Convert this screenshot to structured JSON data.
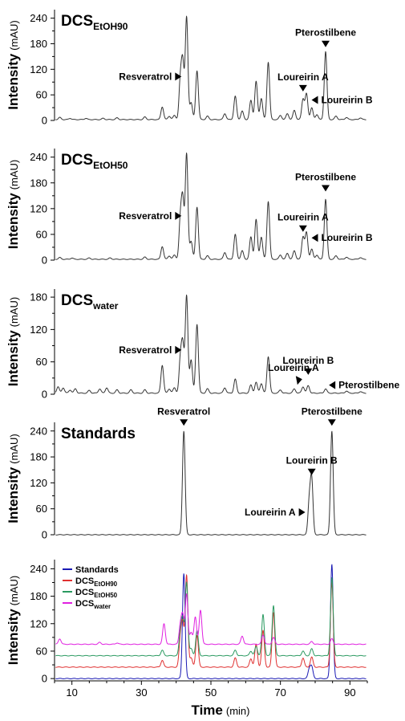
{
  "chart_data": [
    {
      "type": "line",
      "panel_label": "DCS",
      "panel_label_sub": "EtOH90",
      "ylabel": "Intensity",
      "ylabel_unit": "(mAU)",
      "ylim": [
        0,
        260
      ],
      "yticks": [
        0,
        60,
        120,
        180,
        240
      ],
      "xlim": [
        5,
        95
      ],
      "series": [
        {
          "color": "#333333",
          "baseline": 2,
          "peaks": [
            {
              "x": 6.5,
              "h": 5
            },
            {
              "x": 9.5,
              "h": 3
            },
            {
              "x": 14,
              "h": 3
            },
            {
              "x": 19,
              "h": 3
            },
            {
              "x": 23,
              "h": 4
            },
            {
              "x": 31,
              "h": 6
            },
            {
              "x": 36,
              "h": 30
            },
            {
              "x": 38,
              "h": 8
            },
            {
              "x": 39.5,
              "h": 10
            },
            {
              "x": 41.2,
              "h": 90
            },
            {
              "x": 41.9,
              "h": 130
            },
            {
              "x": 43,
              "h": 240
            },
            {
              "x": 44.3,
              "h": 40
            },
            {
              "x": 46,
              "h": 115
            },
            {
              "x": 49,
              "h": 8
            },
            {
              "x": 54,
              "h": 14
            },
            {
              "x": 57,
              "h": 55
            },
            {
              "x": 59,
              "h": 20
            },
            {
              "x": 61.5,
              "h": 45
            },
            {
              "x": 63,
              "h": 90
            },
            {
              "x": 64.5,
              "h": 50
            },
            {
              "x": 66.5,
              "h": 135
            },
            {
              "x": 70,
              "h": 10
            },
            {
              "x": 72,
              "h": 14
            },
            {
              "x": 74,
              "h": 22
            },
            {
              "x": 76.5,
              "h": 48
            },
            {
              "x": 77.5,
              "h": 60
            },
            {
              "x": 79,
              "h": 28
            },
            {
              "x": 80.5,
              "h": 12
            },
            {
              "x": 83,
              "h": 160
            },
            {
              "x": 86,
              "h": 8
            },
            {
              "x": 89,
              "h": 5
            },
            {
              "x": 93,
              "h": 4
            }
          ]
        }
      ],
      "annotations": [
        {
          "text": "Resveratrol",
          "x": 42,
          "y": 103,
          "arrow": "right"
        },
        {
          "text": "Pterostilbene",
          "x": 83,
          "y": 172,
          "arrow": "down"
        },
        {
          "text": "Loureirin A",
          "x": 76.5,
          "y": 68,
          "arrow": "down"
        },
        {
          "text": "Loureirin B",
          "x": 78.5,
          "y": 48,
          "arrow": "left"
        }
      ]
    },
    {
      "type": "line",
      "panel_label": "DCS",
      "panel_label_sub": "EtOH50",
      "ylabel": "Intensity",
      "ylabel_unit": "(mAU)",
      "ylim": [
        0,
        260
      ],
      "yticks": [
        0,
        60,
        120,
        180,
        240
      ],
      "xlim": [
        5,
        95
      ],
      "series": [
        {
          "color": "#333333",
          "baseline": 2,
          "peaks": [
            {
              "x": 6.5,
              "h": 4
            },
            {
              "x": 10,
              "h": 3
            },
            {
              "x": 15,
              "h": 3
            },
            {
              "x": 21,
              "h": 3
            },
            {
              "x": 31,
              "h": 5
            },
            {
              "x": 36,
              "h": 30
            },
            {
              "x": 38,
              "h": 8
            },
            {
              "x": 39.5,
              "h": 10
            },
            {
              "x": 41.2,
              "h": 90
            },
            {
              "x": 41.9,
              "h": 135
            },
            {
              "x": 43,
              "h": 245
            },
            {
              "x": 44.3,
              "h": 42
            },
            {
              "x": 46,
              "h": 122
            },
            {
              "x": 49,
              "h": 8
            },
            {
              "x": 54,
              "h": 16
            },
            {
              "x": 57,
              "h": 58
            },
            {
              "x": 59,
              "h": 20
            },
            {
              "x": 61.5,
              "h": 52
            },
            {
              "x": 63,
              "h": 93
            },
            {
              "x": 64.5,
              "h": 52
            },
            {
              "x": 66.5,
              "h": 135
            },
            {
              "x": 70,
              "h": 10
            },
            {
              "x": 72,
              "h": 14
            },
            {
              "x": 74,
              "h": 20
            },
            {
              "x": 76.5,
              "h": 52
            },
            {
              "x": 77.5,
              "h": 62
            },
            {
              "x": 79,
              "h": 24
            },
            {
              "x": 80.5,
              "h": 10
            },
            {
              "x": 83,
              "h": 140
            },
            {
              "x": 86,
              "h": 8
            },
            {
              "x": 89,
              "h": 5
            },
            {
              "x": 93,
              "h": 4
            }
          ]
        }
      ],
      "annotations": [
        {
          "text": "Resveratrol",
          "x": 42,
          "y": 103,
          "arrow": "right"
        },
        {
          "text": "Pterostilbene",
          "x": 83,
          "y": 160,
          "arrow": "down"
        },
        {
          "text": "Loureirin A",
          "x": 76.5,
          "y": 66,
          "arrow": "down"
        },
        {
          "text": "Loureirin B",
          "x": 78.5,
          "y": 52,
          "arrow": "left"
        }
      ]
    },
    {
      "type": "line",
      "panel_label": "DCS",
      "panel_label_sub": "water",
      "ylabel": "Intensity",
      "ylabel_unit": "(mAU)",
      "ylim": [
        0,
        195
      ],
      "yticks": [
        0,
        60,
        120,
        180
      ],
      "xlim": [
        5,
        95
      ],
      "series": [
        {
          "color": "#333333",
          "baseline": 2,
          "peaks": [
            {
              "x": 6,
              "h": 12
            },
            {
              "x": 7.5,
              "h": 10
            },
            {
              "x": 9.5,
              "h": 6
            },
            {
              "x": 11,
              "h": 8
            },
            {
              "x": 15,
              "h": 5
            },
            {
              "x": 18,
              "h": 8
            },
            {
              "x": 20,
              "h": 10
            },
            {
              "x": 23,
              "h": 6
            },
            {
              "x": 27,
              "h": 6
            },
            {
              "x": 31,
              "h": 6
            },
            {
              "x": 36,
              "h": 52
            },
            {
              "x": 38,
              "h": 8
            },
            {
              "x": 39.5,
              "h": 10
            },
            {
              "x": 41.2,
              "h": 60
            },
            {
              "x": 41.9,
              "h": 88
            },
            {
              "x": 43,
              "h": 180
            },
            {
              "x": 44.3,
              "h": 62
            },
            {
              "x": 46,
              "h": 128
            },
            {
              "x": 49,
              "h": 8
            },
            {
              "x": 54,
              "h": 10
            },
            {
              "x": 57,
              "h": 26
            },
            {
              "x": 61.5,
              "h": 15
            },
            {
              "x": 63,
              "h": 20
            },
            {
              "x": 64.5,
              "h": 18
            },
            {
              "x": 66.5,
              "h": 68
            },
            {
              "x": 70,
              "h": 6
            },
            {
              "x": 74,
              "h": 8
            },
            {
              "x": 76.5,
              "h": 12
            },
            {
              "x": 78,
              "h": 14
            },
            {
              "x": 83,
              "h": 8
            },
            {
              "x": 89,
              "h": 4
            },
            {
              "x": 93,
              "h": 3
            }
          ]
        }
      ],
      "annotations": [
        {
          "text": "Resveratrol",
          "x": 42,
          "y": 82,
          "arrow": "right"
        },
        {
          "text": "Loureirin A",
          "x": 76.5,
          "y": 22,
          "arrow": "downleft"
        },
        {
          "text": "Loureirin B",
          "x": 78,
          "y": 36,
          "arrow": "down"
        },
        {
          "text": "Pterostilbene",
          "x": 83.5,
          "y": 17,
          "arrow": "left"
        }
      ]
    },
    {
      "type": "line",
      "panel_label": "Standards",
      "panel_label_sub": "",
      "ylabel": "Intensity",
      "ylabel_unit": "(mAU)",
      "ylim": [
        0,
        260
      ],
      "yticks": [
        0,
        60,
        120,
        180,
        240
      ],
      "xlim": [
        5,
        95
      ],
      "series": [
        {
          "color": "#333333",
          "baseline": 0,
          "peaks": [
            {
              "x": 42.2,
              "h": 240
            },
            {
              "x": 78.3,
              "h": 75
            },
            {
              "x": 79,
              "h": 125
            },
            {
              "x": 84.8,
              "h": 240
            }
          ]
        }
      ],
      "annotations": [
        {
          "text": "Resveratrol",
          "x": 42.2,
          "y": 252,
          "arrow": "down"
        },
        {
          "text": "Pterostilbene",
          "x": 84.8,
          "y": 252,
          "arrow": "down"
        },
        {
          "text": "Loureirin B",
          "x": 79,
          "y": 138,
          "arrow": "down"
        },
        {
          "text": "Loureirin A",
          "x": 77.6,
          "y": 52,
          "arrow": "right"
        }
      ]
    },
    {
      "type": "line",
      "panel_label": "",
      "panel_label_sub": "",
      "ylabel": "Intensity",
      "ylabel_unit": "(mAU)",
      "xlabel": "Time",
      "xlabel_unit": "(min)",
      "ylim": [
        -5,
        260
      ],
      "yticks": [
        0,
        60,
        120,
        180,
        240
      ],
      "xlim": [
        5,
        95
      ],
      "xticks": [
        10,
        30,
        50,
        70,
        90
      ],
      "series": [
        {
          "name": "Standards",
          "name_sub": "",
          "color": "#1a1ab4",
          "baseline": 0,
          "peaks": [
            {
              "x": 42.2,
              "h": 230
            },
            {
              "x": 78.3,
              "h": 20
            },
            {
              "x": 79,
              "h": 25
            },
            {
              "x": 84.8,
              "h": 250
            }
          ]
        },
        {
          "name": "DCS",
          "name_sub": "EtOH90",
          "color": "#e03030",
          "baseline": 25,
          "peaks": [
            {
              "x": 36,
              "h": 15
            },
            {
              "x": 41.2,
              "h": 60
            },
            {
              "x": 41.9,
              "h": 90
            },
            {
              "x": 43,
              "h": 200
            },
            {
              "x": 44.3,
              "h": 20
            },
            {
              "x": 46,
              "h": 70
            },
            {
              "x": 57,
              "h": 20
            },
            {
              "x": 61.5,
              "h": 18
            },
            {
              "x": 63,
              "h": 50
            },
            {
              "x": 65,
              "h": 80
            },
            {
              "x": 68,
              "h": 120
            },
            {
              "x": 76.5,
              "h": 20
            },
            {
              "x": 79,
              "h": 22
            },
            {
              "x": 84.8,
              "h": 185
            }
          ]
        },
        {
          "name": "DCS",
          "name_sub": "EtOH50",
          "color": "#2a9a60",
          "baseline": 50,
          "peaks": [
            {
              "x": 36,
              "h": 12
            },
            {
              "x": 41.2,
              "h": 50
            },
            {
              "x": 41.9,
              "h": 75
            },
            {
              "x": 43,
              "h": 160
            },
            {
              "x": 44.3,
              "h": 15
            },
            {
              "x": 46,
              "h": 55
            },
            {
              "x": 57,
              "h": 12
            },
            {
              "x": 61.5,
              "h": 10
            },
            {
              "x": 63,
              "h": 20
            },
            {
              "x": 65,
              "h": 90
            },
            {
              "x": 68,
              "h": 110
            },
            {
              "x": 76.5,
              "h": 10
            },
            {
              "x": 79,
              "h": 15
            },
            {
              "x": 84.8,
              "h": 170
            }
          ]
        },
        {
          "name": "DCS",
          "name_sub": "water",
          "color": "#e020e0",
          "baseline": 75,
          "peaks": [
            {
              "x": 6.5,
              "h": 12
            },
            {
              "x": 18,
              "h": 4
            },
            {
              "x": 23,
              "h": 3
            },
            {
              "x": 36.5,
              "h": 45
            },
            {
              "x": 41.2,
              "h": 40
            },
            {
              "x": 41.9,
              "h": 60
            },
            {
              "x": 43,
              "h": 110
            },
            {
              "x": 44.3,
              "h": 25
            },
            {
              "x": 45.5,
              "h": 60
            },
            {
              "x": 47,
              "h": 75
            },
            {
              "x": 59,
              "h": 18
            },
            {
              "x": 65,
              "h": 20
            },
            {
              "x": 68,
              "h": 15
            },
            {
              "x": 79,
              "h": 6
            },
            {
              "x": 84.8,
              "h": 12
            }
          ]
        }
      ],
      "legend_position": "top-left"
    }
  ]
}
